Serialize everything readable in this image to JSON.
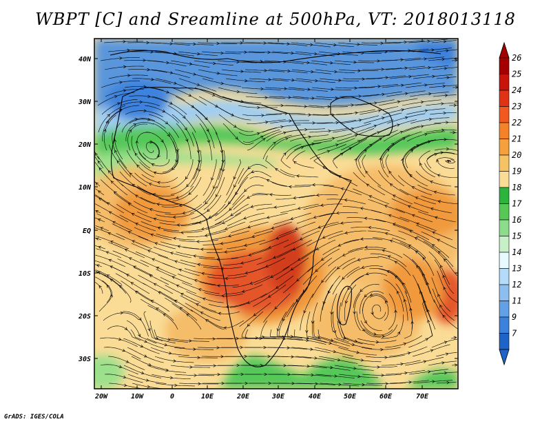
{
  "title": "WBPT [C] and Sreamline at 500hPa, VT: 2018013118",
  "credit": "GrADS: IGES/COLA",
  "lat_labels": [
    "40N",
    "30N",
    "20N",
    "10N",
    "EQ",
    "10S",
    "20S",
    "30S"
  ],
  "lon_labels": [
    "20W",
    "10W",
    "0",
    "10E",
    "20E",
    "30E",
    "40E",
    "50E",
    "60E",
    "70E"
  ],
  "colorbar": {
    "labels": [
      "26",
      "25",
      "24",
      "23",
      "22",
      "21",
      "20",
      "19",
      "18",
      "17",
      "16",
      "15",
      "14",
      "13",
      "12",
      "11",
      "9",
      "7"
    ],
    "colors": [
      "#a50000",
      "#c8140a",
      "#e03214",
      "#f05a1e",
      "#f58228",
      "#f5a03c",
      "#f5c364",
      "#fadc96",
      "#2db43c",
      "#55c855",
      "#8cdc8c",
      "#c8f0c8",
      "#e6faff",
      "#b4dcfa",
      "#8cbef0",
      "#64a0e6",
      "#3c82dc",
      "#1e64c8"
    ]
  },
  "map_colors": {
    "cold": "#5a96dc",
    "cool": "#a0cdf0",
    "green": "#55c85a",
    "lightgreen": "#9be08c",
    "pale": "#fadc96",
    "mid": "#f5bd6a",
    "orange": "#f09a3c",
    "hot": "#e4572a",
    "hottest": "#d23c1e"
  }
}
